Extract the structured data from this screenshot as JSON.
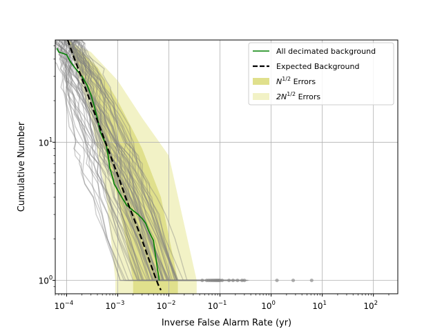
{
  "chart_data": {
    "type": "line",
    "xlabel": "Inverse False Alarm Rate (yr)",
    "ylabel": "Cumulative Number",
    "xscale": "log",
    "yscale": "log",
    "xlim": [
      6e-05,
      300
    ],
    "ylim": [
      0.8,
      55
    ],
    "grid": true,
    "legend_position": "top-right",
    "x_ticks": [
      {
        "value": 0.0001,
        "base": "10",
        "exp": "−4"
      },
      {
        "value": 0.001,
        "base": "10",
        "exp": "−3"
      },
      {
        "value": 0.01,
        "base": "10",
        "exp": "−2"
      },
      {
        "value": 0.1,
        "base": "10",
        "exp": "−1"
      },
      {
        "value": 1,
        "base": "10",
        "exp": "0"
      },
      {
        "value": 10,
        "base": "10",
        "exp": "1"
      },
      {
        "value": 100,
        "base": "10",
        "exp": "2"
      }
    ],
    "y_ticks": [
      {
        "value": 1,
        "base": "10",
        "exp": "0"
      },
      {
        "value": 10,
        "base": "10",
        "exp": "1"
      }
    ],
    "legend": [
      {
        "key": "decimated",
        "label": "All decimated background",
        "style": "line",
        "color": "#008000"
      },
      {
        "key": "expected",
        "label": "Expected Background",
        "style": "dashed",
        "color": "#000000"
      },
      {
        "key": "err1",
        "label_base": "N",
        "label_sup": "1/2",
        "label_tail": " Errors",
        "style": "patch",
        "color": "#e0e08c"
      },
      {
        "key": "err2",
        "label_base": "2N",
        "label_sup": "1/2",
        "label_tail": " Errors",
        "style": "patch",
        "color": "#f2f2c6"
      }
    ],
    "series": [
      {
        "name": "All decimated background",
        "color": "#008000",
        "points": [
          [
            6.5e-05,
            48
          ],
          [
            7e-05,
            45
          ],
          [
            8.5e-05,
            44
          ],
          [
            0.0001,
            43
          ],
          [
            0.00012,
            38
          ],
          [
            0.00015,
            34
          ],
          [
            0.0002,
            30
          ],
          [
            0.00025,
            26
          ],
          [
            0.0003,
            22
          ],
          [
            0.00035,
            18
          ],
          [
            0.0004,
            15
          ],
          [
            0.00045,
            12
          ],
          [
            0.0005,
            11
          ],
          [
            0.0006,
            9.5
          ],
          [
            0.00065,
            8
          ],
          [
            0.0007,
            6.5
          ],
          [
            0.0008,
            5.5
          ],
          [
            0.00085,
            5
          ],
          [
            0.001,
            4.5
          ],
          [
            0.0012,
            4
          ],
          [
            0.0015,
            3.5
          ],
          [
            0.002,
            3.2
          ],
          [
            0.0025,
            3
          ],
          [
            0.003,
            2.8
          ],
          [
            0.0035,
            2.6
          ],
          [
            0.004,
            2.3
          ],
          [
            0.0045,
            2.1
          ],
          [
            0.005,
            1.95
          ],
          [
            0.0055,
            1.5
          ],
          [
            0.006,
            1.2
          ],
          [
            0.0065,
            1.0
          ]
        ]
      },
      {
        "name": "Expected Background",
        "color": "#000000",
        "dashed": true,
        "points": [
          [
            0.000105,
            55
          ],
          [
            0.00014,
            41
          ],
          [
            0.0002,
            29
          ],
          [
            0.0003,
            19
          ],
          [
            0.0005,
            11.5
          ],
          [
            0.0008,
            7.2
          ],
          [
            0.001,
            5.8
          ],
          [
            0.0015,
            3.8
          ],
          [
            0.002,
            2.9
          ],
          [
            0.003,
            1.95
          ],
          [
            0.004,
            1.45
          ],
          [
            0.005,
            1.15
          ],
          [
            0.0062,
            0.93
          ],
          [
            0.007,
            0.85
          ]
        ]
      }
    ],
    "background_draw_count": 60,
    "background_color": "#808080",
    "error_bands": [
      {
        "name": "2N^1/2 Errors",
        "color": "#f2f2c6",
        "x_min": 0.0001,
        "x_max": 0.035,
        "upper": [
          [
            0.0001,
            55
          ],
          [
            0.0003,
            45
          ],
          [
            0.001,
            28
          ],
          [
            0.003,
            15
          ],
          [
            0.01,
            8
          ],
          [
            0.035,
            1
          ]
        ],
        "lower": [
          [
            0.0001,
            55
          ],
          [
            0.00015,
            35
          ],
          [
            0.0003,
            15
          ],
          [
            0.0006,
            4
          ],
          [
            0.0009,
            1
          ]
        ]
      },
      {
        "name": "N^1/2 Errors",
        "color": "#e0e08c",
        "x_min": 0.00011,
        "x_max": 0.015,
        "upper": [
          [
            0.00011,
            55
          ],
          [
            0.0004,
            35
          ],
          [
            0.001,
            20
          ],
          [
            0.003,
            9
          ],
          [
            0.007,
            4
          ],
          [
            0.015,
            1
          ]
        ],
        "lower": [
          [
            0.00011,
            55
          ],
          [
            0.0002,
            30
          ],
          [
            0.0004,
            14
          ],
          [
            0.001,
            4
          ],
          [
            0.002,
            1
          ]
        ]
      }
    ],
    "scatter_points": [
      [
        0.045,
        1
      ],
      [
        0.055,
        1
      ],
      [
        0.06,
        1
      ],
      [
        0.065,
        1
      ],
      [
        0.07,
        1
      ],
      [
        0.075,
        1
      ],
      [
        0.08,
        1
      ],
      [
        0.085,
        1
      ],
      [
        0.09,
        1
      ],
      [
        0.095,
        1
      ],
      [
        0.1,
        1
      ],
      [
        0.11,
        1
      ],
      [
        0.15,
        1
      ],
      [
        0.18,
        1
      ],
      [
        0.22,
        1
      ],
      [
        0.27,
        1
      ],
      [
        0.3,
        1
      ],
      [
        1.3,
        1
      ],
      [
        2.7,
        1
      ],
      [
        6.2,
        1
      ]
    ]
  }
}
